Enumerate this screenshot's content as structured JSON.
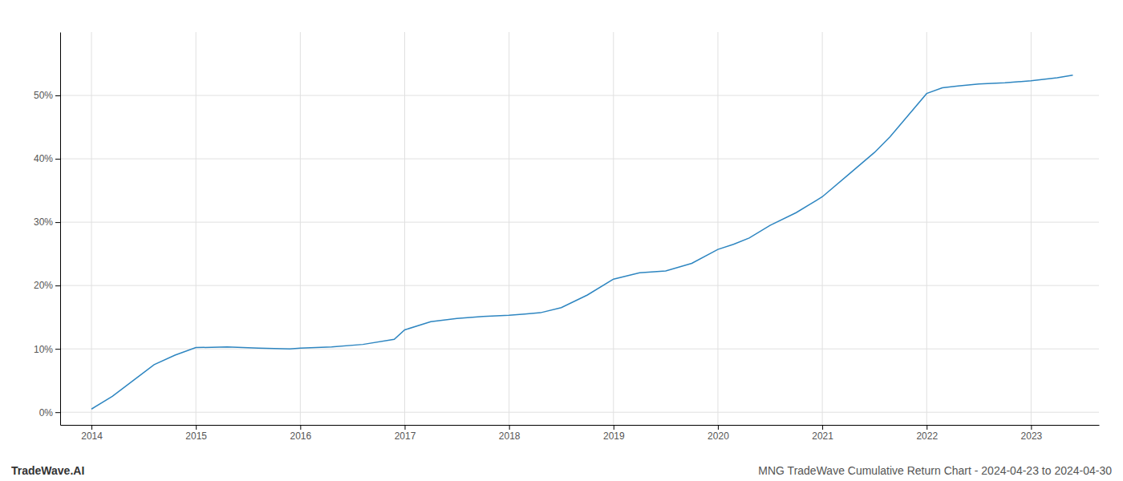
{
  "chart_data": {
    "type": "line",
    "title": "MNG TradeWave Cumulative Return Chart - 2024-04-23 to 2024-04-30",
    "annotations": [
      "TradeWave.AI"
    ],
    "color": "#2e86c1",
    "grid": true,
    "x": [
      2014.0,
      2014.2,
      2014.4,
      2014.6,
      2014.8,
      2015.0,
      2015.3,
      2015.6,
      2015.9,
      2016.0,
      2016.3,
      2016.6,
      2016.9,
      2017.0,
      2017.25,
      2017.5,
      2017.75,
      2018.0,
      2018.15,
      2018.3,
      2018.5,
      2018.75,
      2019.0,
      2019.25,
      2019.5,
      2019.75,
      2020.0,
      2020.15,
      2020.3,
      2020.5,
      2020.75,
      2021.0,
      2021.25,
      2021.5,
      2021.65,
      2022.0,
      2022.15,
      2022.3,
      2022.5,
      2022.75,
      2023.0,
      2023.25,
      2023.4
    ],
    "values": [
      0.5,
      2.5,
      5.0,
      7.5,
      9.0,
      10.2,
      10.3,
      10.1,
      10.0,
      10.1,
      10.3,
      10.7,
      11.5,
      13.0,
      14.3,
      14.8,
      15.1,
      15.3,
      15.5,
      15.7,
      16.5,
      18.5,
      21.0,
      22.0,
      22.3,
      23.5,
      25.7,
      26.5,
      27.5,
      29.5,
      31.5,
      34.0,
      37.5,
      41.0,
      43.5,
      50.3,
      51.2,
      51.5,
      51.8,
      52.0,
      52.3,
      52.8,
      53.2
    ],
    "xlim": [
      2013.7,
      2023.65
    ],
    "ylim": [
      -2,
      60
    ],
    "xticks": [
      2014,
      2015,
      2016,
      2017,
      2018,
      2019,
      2020,
      2021,
      2022,
      2023
    ],
    "yticks": [
      {
        "value": 0,
        "label": "0%"
      },
      {
        "value": 10,
        "label": "10%"
      },
      {
        "value": 20,
        "label": "20%"
      },
      {
        "value": 30,
        "label": "30%"
      },
      {
        "value": 40,
        "label": "40%"
      },
      {
        "value": 50,
        "label": "50%"
      }
    ]
  }
}
